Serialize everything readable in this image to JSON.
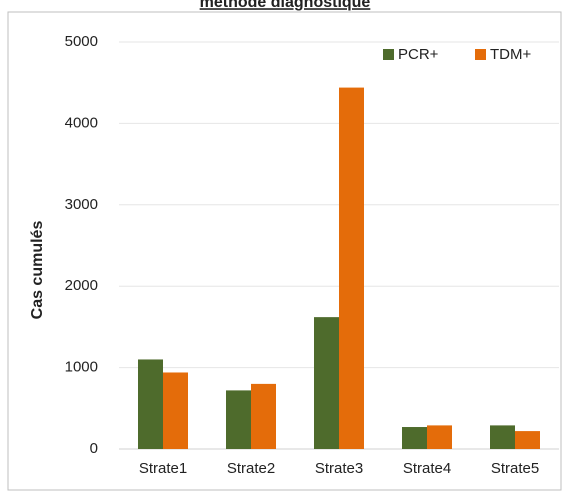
{
  "chart_data": {
    "type": "bar",
    "title": "méthode diagnostique",
    "ylabel": "Cas cumulés",
    "categories": [
      "Strate1",
      "Strate2",
      "Strate3",
      "Strate4",
      "Strate5"
    ],
    "series": [
      {
        "name": "PCR+",
        "color": "#4e6b2c",
        "values": [
          1100,
          720,
          1620,
          270,
          290
        ]
      },
      {
        "name": "TDM+",
        "color": "#e46c0a",
        "values": [
          940,
          800,
          4440,
          290,
          220
        ]
      }
    ],
    "ylim": [
      0,
      5000
    ],
    "yticks": [
      0,
      1000,
      2000,
      3000,
      4000,
      5000
    ],
    "grid": true,
    "legend": "top-right"
  }
}
